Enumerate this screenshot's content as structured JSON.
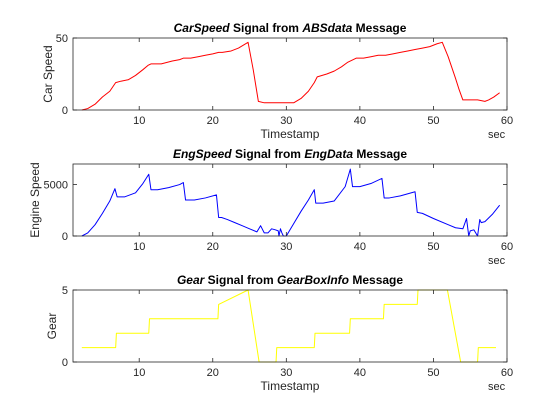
{
  "figure": {
    "background": "#ffffff",
    "axes_color": "#262626"
  },
  "chart_data": [
    {
      "type": "line",
      "title_parts": [
        {
          "text": "CarSpeed",
          "italic": true
        },
        {
          "text": " Signal from ",
          "italic": false
        },
        {
          "text": "ABSdata",
          "italic": true
        },
        {
          "text": " Message",
          "italic": false
        }
      ],
      "xlabel": "Timestamp",
      "ylabel": "Car Speed",
      "x_unit_label": "sec",
      "xlim": [
        1,
        60
      ],
      "ylim": [
        0,
        50
      ],
      "xticks": [
        10,
        20,
        30,
        40,
        50,
        60
      ],
      "yticks": [
        0,
        50
      ],
      "grid": false,
      "series": [
        {
          "color": "#ff0000",
          "x": [
            2.2,
            3.0,
            4.0,
            5.0,
            6.0,
            6.8,
            7.5,
            8.5,
            9.5,
            10.5,
            11.2,
            11.6,
            13.0,
            14.5,
            15.5,
            16.0,
            17.0,
            18.0,
            19.0,
            20.0,
            20.8,
            21.3,
            22.5,
            23.5,
            24.8,
            25.5,
            26.2,
            27.0,
            28.0,
            29.5,
            31.0,
            32.0,
            33.0,
            33.8,
            34.2,
            35.5,
            36.5,
            37.5,
            38.3,
            39.5,
            40.5,
            41.5,
            42.5,
            43.5,
            44.5,
            45.5,
            46.5,
            47.5,
            48.5,
            49.5,
            50.5,
            51.2,
            52.0,
            53.0,
            53.5,
            54.0,
            55.0,
            56.0,
            57.0,
            57.5,
            58.2,
            59.0
          ],
          "y": [
            0,
            1,
            4,
            9,
            13,
            19,
            20,
            21,
            24,
            28,
            31,
            32,
            32,
            34,
            35,
            36,
            36,
            37,
            38,
            39,
            40,
            40,
            41,
            43,
            47,
            28,
            6,
            5,
            5,
            5,
            5,
            8,
            13,
            19,
            23,
            25,
            27,
            30,
            33,
            36,
            36,
            37,
            38,
            38,
            39,
            40,
            41,
            42,
            43,
            44,
            46,
            47,
            37,
            22,
            14,
            7,
            7,
            7,
            6,
            7,
            9,
            12
          ]
        }
      ]
    },
    {
      "type": "line",
      "title_parts": [
        {
          "text": "EngSpeed",
          "italic": true
        },
        {
          "text": " Signal from ",
          "italic": false
        },
        {
          "text": "EngData",
          "italic": true
        },
        {
          "text": " Message",
          "italic": false
        }
      ],
      "xlabel": "",
      "ylabel": "Engine Speed",
      "x_unit_label": "sec",
      "xlim": [
        1,
        60
      ],
      "ylim": [
        0,
        7000
      ],
      "xticks": [
        10,
        20,
        30,
        40,
        50,
        60
      ],
      "yticks": [
        0,
        5000
      ],
      "grid": false,
      "series": [
        {
          "color": "#0000ff",
          "x": [
            2.2,
            3.0,
            4.0,
            5.0,
            6.0,
            6.7,
            7.0,
            8.0,
            9.5,
            10.5,
            11.3,
            11.6,
            12.5,
            14.0,
            15.5,
            16.0,
            16.3,
            17.5,
            19.0,
            20.5,
            20.8,
            21.2,
            22.0,
            23.0,
            24.0,
            25.0,
            26.0,
            26.5,
            27.0,
            27.5,
            28.0,
            28.5,
            28.9,
            29.0,
            29.2,
            29.4,
            29.6,
            30.0,
            31.0,
            32.0,
            33.0,
            33.8,
            34.0,
            35.0,
            36.5,
            38.0,
            38.7,
            39.0,
            40.0,
            41.5,
            43.0,
            43.3,
            44.0,
            45.5,
            47.5,
            47.8,
            48.5,
            50.0,
            52.0,
            53.0,
            54.0,
            54.5,
            54.8,
            55.0,
            55.5,
            56.0,
            56.3,
            56.5,
            57.0,
            58.0,
            59.0
          ],
          "y": [
            0,
            300,
            1100,
            2200,
            3400,
            4600,
            3800,
            3800,
            4200,
            5100,
            6000,
            4500,
            4500,
            4700,
            5000,
            5200,
            3500,
            3500,
            3700,
            4000,
            1800,
            1800,
            1600,
            1300,
            1000,
            700,
            400,
            1000,
            300,
            300,
            700,
            600,
            500,
            0,
            700,
            300,
            0,
            0,
            1200,
            2400,
            3500,
            4500,
            3200,
            3200,
            3400,
            4800,
            6500,
            4800,
            4800,
            5100,
            5600,
            3700,
            3700,
            3900,
            4300,
            2300,
            2200,
            1700,
            1100,
            800,
            700,
            1700,
            0,
            500,
            600,
            0,
            1600,
            1300,
            1400,
            2100,
            3000
          ]
        }
      ]
    },
    {
      "type": "line",
      "title_parts": [
        {
          "text": "Gear",
          "italic": true
        },
        {
          "text": " Signal from ",
          "italic": false
        },
        {
          "text": "GearBoxInfo",
          "italic": true
        },
        {
          "text": " Message",
          "italic": false
        }
      ],
      "xlabel": "Timestamp",
      "ylabel": "Gear",
      "x_unit_label": "sec",
      "xlim": [
        1,
        60
      ],
      "ylim": [
        0,
        5
      ],
      "xticks": [
        10,
        20,
        30,
        40,
        50,
        60
      ],
      "yticks": [
        0,
        5
      ],
      "grid": false,
      "series": [
        {
          "color": "#ffff00",
          "x": [
            2.2,
            6.8,
            6.9,
            11.3,
            11.4,
            16.0,
            16.1,
            20.7,
            20.8,
            24.8,
            26.3,
            28.6,
            28.7,
            33.8,
            33.9,
            38.6,
            38.7,
            43.2,
            43.3,
            47.8,
            47.9,
            51.9,
            53.7,
            56.0,
            56.1,
            58.5
          ],
          "y": [
            1,
            1,
            2,
            2,
            3,
            3,
            3,
            3,
            4,
            5,
            0,
            0,
            1,
            1,
            2,
            2,
            3,
            3,
            4,
            4,
            5,
            5,
            0,
            0,
            1,
            1
          ]
        }
      ]
    }
  ]
}
